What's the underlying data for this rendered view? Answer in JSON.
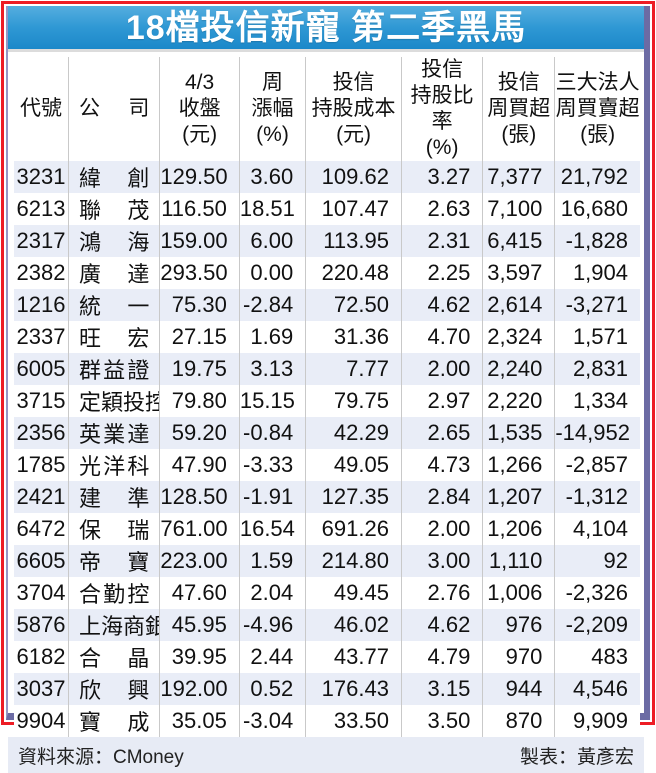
{
  "title": "18檔投信新寵 第二季黑馬",
  "colors": {
    "border_red": "#ed1c24",
    "border_slate": "#6c6ba4",
    "title_gradient_top": "#55aedf",
    "title_gradient_bottom": "#1b88c9",
    "row_alt": "#e9edf7",
    "footer_bg": "#e7ebf5",
    "separator": "#c9c9c9"
  },
  "table": {
    "columns": [
      {
        "key": "code",
        "label": "代號",
        "lines": [
          "代號"
        ],
        "justify": false
      },
      {
        "key": "name",
        "label": "公司",
        "lines": [
          "公司"
        ],
        "justify": true
      },
      {
        "key": "close",
        "label": "4/3收盤(元)",
        "lines": [
          "4/3",
          "收盤",
          "(元)"
        ],
        "justify": false
      },
      {
        "key": "change",
        "label": "周漲幅(%)",
        "lines": [
          "周",
          "漲幅",
          "(%)"
        ],
        "justify": false
      },
      {
        "key": "cost",
        "label": "投信持股成本(元)",
        "lines": [
          "投信",
          "持股成本",
          "(元)"
        ],
        "justify": false
      },
      {
        "key": "ratio",
        "label": "投信持股比率(%)",
        "lines": [
          "投信",
          "持股比率",
          "(%)"
        ],
        "justify": false
      },
      {
        "key": "net_buy",
        "label": "投信周買超(張)",
        "lines": [
          "投信",
          "周買超",
          "(張)"
        ],
        "justify": false
      },
      {
        "key": "inst_net",
        "label": "三大法人周買賣超(張)",
        "lines": [
          "三大法人",
          "周買賣超",
          "(張)"
        ],
        "justify": false
      }
    ],
    "rows": [
      {
        "code": "3231",
        "name": "緯創",
        "close": "129.50",
        "change": "3.60",
        "cost": "109.62",
        "ratio": "3.27",
        "net_buy": "7,377",
        "inst_net": "21,792"
      },
      {
        "code": "6213",
        "name": "聯茂",
        "close": "116.50",
        "change": "18.51",
        "cost": "107.47",
        "ratio": "2.63",
        "net_buy": "7,100",
        "inst_net": "16,680"
      },
      {
        "code": "2317",
        "name": "鴻海",
        "close": "159.00",
        "change": "6.00",
        "cost": "113.95",
        "ratio": "2.31",
        "net_buy": "6,415",
        "inst_net": "-1,828"
      },
      {
        "code": "2382",
        "name": "廣達",
        "close": "293.50",
        "change": "0.00",
        "cost": "220.48",
        "ratio": "2.25",
        "net_buy": "3,597",
        "inst_net": "1,904"
      },
      {
        "code": "1216",
        "name": "統一",
        "close": "75.30",
        "change": "-2.84",
        "cost": "72.50",
        "ratio": "4.62",
        "net_buy": "2,614",
        "inst_net": "-3,271"
      },
      {
        "code": "2337",
        "name": "旺宏",
        "close": "27.15",
        "change": "1.69",
        "cost": "31.36",
        "ratio": "4.70",
        "net_buy": "2,324",
        "inst_net": "1,571"
      },
      {
        "code": "6005",
        "name": "群益證",
        "close": "19.75",
        "change": "3.13",
        "cost": "7.77",
        "ratio": "2.00",
        "net_buy": "2,240",
        "inst_net": "2,831"
      },
      {
        "code": "3715",
        "name": "定穎投控",
        "close": "79.80",
        "change": "15.15",
        "cost": "79.75",
        "ratio": "2.97",
        "net_buy": "2,220",
        "inst_net": "1,334"
      },
      {
        "code": "2356",
        "name": "英業達",
        "close": "59.20",
        "change": "-0.84",
        "cost": "42.29",
        "ratio": "2.65",
        "net_buy": "1,535",
        "inst_net": "-14,952"
      },
      {
        "code": "1785",
        "name": "光洋科",
        "close": "47.90",
        "change": "-3.33",
        "cost": "49.05",
        "ratio": "4.73",
        "net_buy": "1,266",
        "inst_net": "-2,857"
      },
      {
        "code": "2421",
        "name": "建準",
        "close": "128.50",
        "change": "-1.91",
        "cost": "127.35",
        "ratio": "2.84",
        "net_buy": "1,207",
        "inst_net": "-1,312"
      },
      {
        "code": "6472",
        "name": "保瑞",
        "close": "761.00",
        "change": "16.54",
        "cost": "691.26",
        "ratio": "2.00",
        "net_buy": "1,206",
        "inst_net": "4,104"
      },
      {
        "code": "6605",
        "name": "帝寶",
        "close": "223.00",
        "change": "1.59",
        "cost": "214.80",
        "ratio": "3.00",
        "net_buy": "1,110",
        "inst_net": "92"
      },
      {
        "code": "3704",
        "name": "合勤控",
        "close": "47.60",
        "change": "2.04",
        "cost": "49.45",
        "ratio": "2.76",
        "net_buy": "1,006",
        "inst_net": "-2,326"
      },
      {
        "code": "5876",
        "name": "上海商銀",
        "close": "45.95",
        "change": "-4.96",
        "cost": "46.02",
        "ratio": "4.62",
        "net_buy": "976",
        "inst_net": "-2,209"
      },
      {
        "code": "6182",
        "name": "合晶",
        "close": "39.95",
        "change": "2.44",
        "cost": "43.77",
        "ratio": "4.79",
        "net_buy": "970",
        "inst_net": "483"
      },
      {
        "code": "3037",
        "name": "欣興",
        "close": "192.00",
        "change": "0.52",
        "cost": "176.43",
        "ratio": "3.15",
        "net_buy": "944",
        "inst_net": "4,546"
      },
      {
        "code": "9904",
        "name": "寶成",
        "close": "35.05",
        "change": "-3.04",
        "cost": "33.50",
        "ratio": "3.50",
        "net_buy": "870",
        "inst_net": "9,909"
      }
    ]
  },
  "footer": {
    "source": "資料來源：CMoney",
    "credit": "製表：黃彥宏"
  },
  "chart_data": {
    "type": "table",
    "title": "18檔投信新寵 第二季黑馬",
    "columns": [
      "代號",
      "公司",
      "4/3收盤(元)",
      "周漲幅(%)",
      "投信持股成本(元)",
      "投信持股比率(%)",
      "投信周買超(張)",
      "三大法人周買賣超(張)"
    ],
    "rows": [
      [
        "3231",
        "緯創",
        129.5,
        3.6,
        109.62,
        3.27,
        7377,
        21792
      ],
      [
        "6213",
        "聯茂",
        116.5,
        18.51,
        107.47,
        2.63,
        7100,
        16680
      ],
      [
        "2317",
        "鴻海",
        159.0,
        6.0,
        113.95,
        2.31,
        6415,
        -1828
      ],
      [
        "2382",
        "廣達",
        293.5,
        0.0,
        220.48,
        2.25,
        3597,
        1904
      ],
      [
        "1216",
        "統一",
        75.3,
        -2.84,
        72.5,
        4.62,
        2614,
        -3271
      ],
      [
        "2337",
        "旺宏",
        27.15,
        1.69,
        31.36,
        4.7,
        2324,
        1571
      ],
      [
        "6005",
        "群益證",
        19.75,
        3.13,
        7.77,
        2.0,
        2240,
        2831
      ],
      [
        "3715",
        "定穎投控",
        79.8,
        15.15,
        79.75,
        2.97,
        2220,
        1334
      ],
      [
        "2356",
        "英業達",
        59.2,
        -0.84,
        42.29,
        2.65,
        1535,
        -14952
      ],
      [
        "1785",
        "光洋科",
        47.9,
        -3.33,
        49.05,
        4.73,
        1266,
        -2857
      ],
      [
        "2421",
        "建準",
        128.5,
        -1.91,
        127.35,
        2.84,
        1207,
        -1312
      ],
      [
        "6472",
        "保瑞",
        761.0,
        16.54,
        691.26,
        2.0,
        1206,
        4104
      ],
      [
        "6605",
        "帝寶",
        223.0,
        1.59,
        214.8,
        3.0,
        1110,
        92
      ],
      [
        "3704",
        "合勤控",
        47.6,
        2.04,
        49.45,
        2.76,
        1006,
        -2326
      ],
      [
        "5876",
        "上海商銀",
        45.95,
        -4.96,
        46.02,
        4.62,
        976,
        -2209
      ],
      [
        "6182",
        "合晶",
        39.95,
        2.44,
        43.77,
        4.79,
        970,
        483
      ],
      [
        "3037",
        "欣興",
        192.0,
        0.52,
        176.43,
        3.15,
        944,
        4546
      ],
      [
        "9904",
        "寶成",
        35.05,
        -3.04,
        33.5,
        3.5,
        870,
        9909
      ]
    ]
  }
}
